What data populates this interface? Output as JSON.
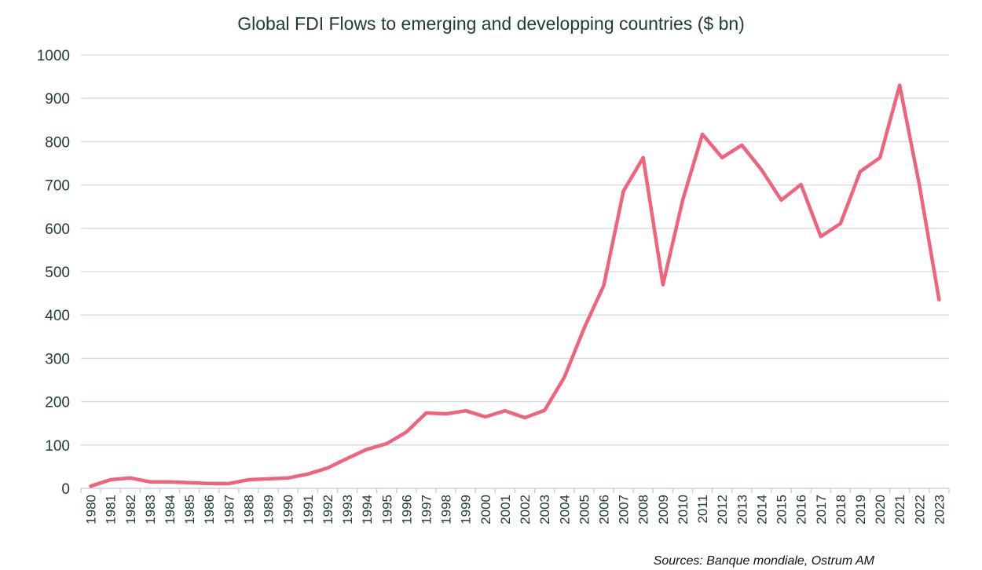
{
  "chart_data": {
    "type": "line",
    "title": "Global FDI Flows to emerging and developping countries ($ bn)",
    "xlabel": "",
    "ylabel": "",
    "ylim": [
      0,
      1000
    ],
    "yticks": [
      "0",
      "100",
      "200",
      "300",
      "400",
      "500",
      "600",
      "700",
      "800",
      "900",
      "1000"
    ],
    "grid": true,
    "categories": [
      "1980",
      "1981",
      "1982",
      "1983",
      "1984",
      "1985",
      "1986",
      "1987",
      "1988",
      "1989",
      "1990",
      "1991",
      "1992",
      "1993",
      "1994",
      "1995",
      "1996",
      "1997",
      "1998",
      "1999",
      "2000",
      "2001",
      "2002",
      "2003",
      "2004",
      "2005",
      "2006",
      "2007",
      "2008",
      "2009",
      "2010",
      "2011",
      "2012",
      "2013",
      "2014",
      "2015",
      "2016",
      "2017",
      "2018",
      "2019",
      "2020",
      "2021",
      "2022",
      "2023"
    ],
    "series": [
      {
        "name": "Global FDI Flows",
        "color": "#f0637c",
        "values": [
          5,
          20,
          24,
          15,
          15,
          13,
          11,
          11,
          20,
          22,
          24,
          33,
          47,
          69,
          90,
          103,
          130,
          174,
          172,
          179,
          165,
          179,
          163,
          180,
          256,
          369,
          468,
          686,
          763,
          470,
          665,
          817,
          763,
          792,
          735,
          665,
          701,
          581,
          611,
          731,
          763,
          930,
          700,
          435
        ]
      }
    ]
  },
  "source_note": "Sources: Banque mondiale, Ostrum AM"
}
